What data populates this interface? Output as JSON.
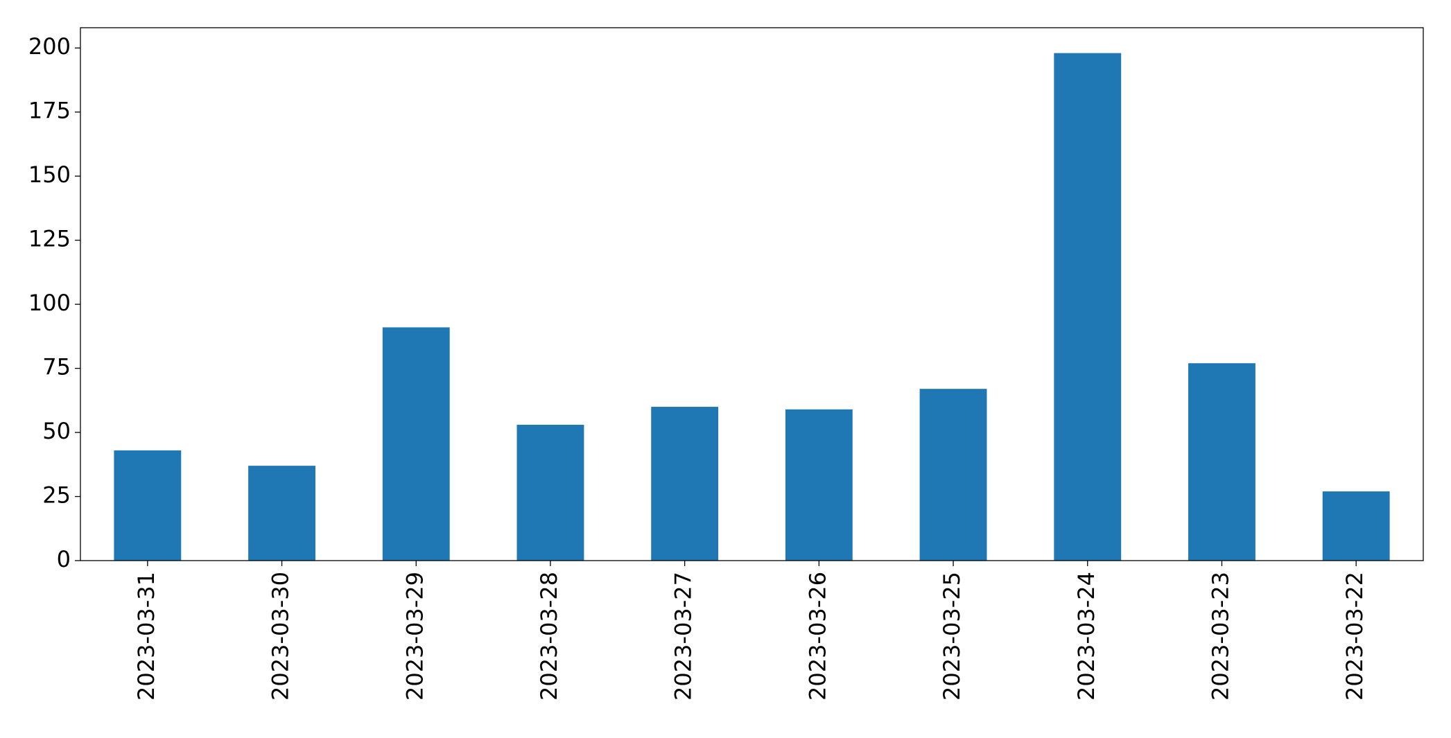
{
  "chart_data": {
    "type": "bar",
    "categories": [
      "2023-03-31",
      "2023-03-30",
      "2023-03-29",
      "2023-03-28",
      "2023-03-27",
      "2023-03-26",
      "2023-03-25",
      "2023-03-24",
      "2023-03-23",
      "2023-03-22"
    ],
    "values": [
      43,
      37,
      91,
      53,
      60,
      59,
      67,
      198,
      77,
      27
    ],
    "color": "#1f77b4",
    "ylim": [
      0,
      207.9
    ],
    "yticks": [
      0,
      25,
      50,
      75,
      100,
      125,
      150,
      175,
      200
    ],
    "grid": false
  }
}
